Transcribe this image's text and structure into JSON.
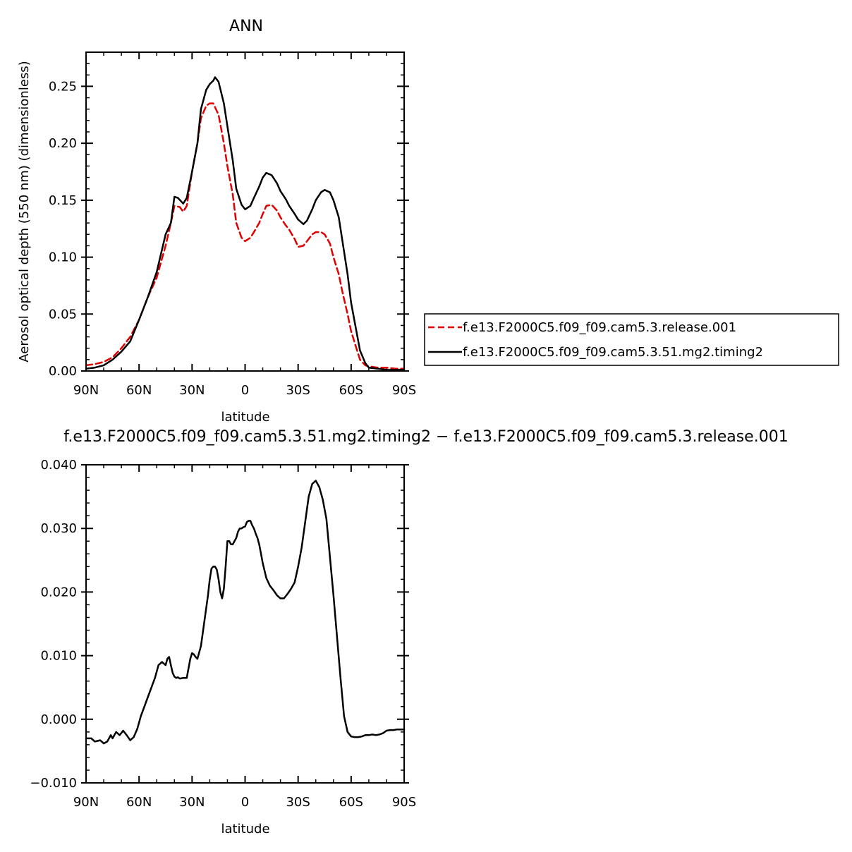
{
  "chart_data": [
    {
      "type": "line",
      "title": "ANN",
      "xlabel": "latitude",
      "ylabel": "Aerosol optical depth (550 nm) (dimensionless)",
      "xlim": [
        90,
        -90
      ],
      "ylim": [
        0,
        0.28
      ],
      "x_ticks": [
        {
          "value": 90,
          "label": "90N"
        },
        {
          "value": 60,
          "label": "60N"
        },
        {
          "value": 30,
          "label": "30N"
        },
        {
          "value": 0,
          "label": "0"
        },
        {
          "value": -30,
          "label": "30S"
        },
        {
          "value": -60,
          "label": "60S"
        },
        {
          "value": -90,
          "label": "90S"
        }
      ],
      "y_ticks": [
        {
          "value": 0,
          "label": "0.00"
        },
        {
          "value": 0.05,
          "label": "0.05"
        },
        {
          "value": 0.1,
          "label": "0.10"
        },
        {
          "value": 0.15,
          "label": "0.15"
        },
        {
          "value": 0.2,
          "label": "0.20"
        },
        {
          "value": 0.25,
          "label": "0.25"
        }
      ],
      "legend_position": "right",
      "series": [
        {
          "name": "f.e13.F2000C5.f09_f09.cam5.3.release.001",
          "color": "#e00000",
          "dash": "dashed",
          "x": [
            90,
            85,
            80,
            75,
            70,
            65,
            60,
            55,
            50,
            45,
            42,
            40,
            37,
            35,
            33,
            30,
            27,
            25,
            22,
            20,
            18,
            15,
            12,
            10,
            7,
            5,
            2,
            0,
            -3,
            -5,
            -8,
            -10,
            -12,
            -15,
            -18,
            -20,
            -23,
            -25,
            -28,
            -30,
            -33,
            -35,
            -38,
            -40,
            -43,
            -45,
            -48,
            -50,
            -53,
            -55,
            -58,
            -60,
            -63,
            -65,
            -68,
            -70,
            -75,
            -80,
            -85,
            -90
          ],
          "y": [
            0.005,
            0.006,
            0.008,
            0.012,
            0.02,
            0.03,
            0.045,
            0.065,
            0.082,
            0.11,
            0.13,
            0.145,
            0.144,
            0.14,
            0.145,
            0.175,
            0.2,
            0.222,
            0.233,
            0.235,
            0.235,
            0.225,
            0.2,
            0.18,
            0.155,
            0.13,
            0.117,
            0.114,
            0.117,
            0.122,
            0.13,
            0.138,
            0.145,
            0.146,
            0.141,
            0.135,
            0.128,
            0.124,
            0.116,
            0.109,
            0.11,
            0.114,
            0.12,
            0.122,
            0.122,
            0.12,
            0.112,
            0.1,
            0.085,
            0.07,
            0.05,
            0.035,
            0.02,
            0.01,
            0.005,
            0.004,
            0.003,
            0.003,
            0.002,
            0.002
          ]
        },
        {
          "name": "f.e13.F2000C5.f09_f09.cam5.3.51.mg2.timing2",
          "color": "#000000",
          "dash": "solid",
          "x": [
            90,
            85,
            80,
            75,
            70,
            65,
            60,
            55,
            50,
            45,
            42,
            40,
            38,
            35,
            33,
            30,
            27,
            25,
            22,
            20,
            18,
            17,
            15,
            12,
            10,
            7,
            5,
            2,
            0,
            -3,
            -5,
            -8,
            -10,
            -12,
            -15,
            -18,
            -20,
            -23,
            -25,
            -28,
            -30,
            -33,
            -35,
            -38,
            -40,
            -43,
            -45,
            -48,
            -50,
            -53,
            -55,
            -58,
            -60,
            -63,
            -65,
            -68,
            -70,
            -75,
            -80,
            -85,
            -90
          ],
          "y": [
            0.002,
            0.003,
            0.005,
            0.01,
            0.017,
            0.026,
            0.045,
            0.065,
            0.087,
            0.12,
            0.13,
            0.153,
            0.152,
            0.147,
            0.152,
            0.175,
            0.2,
            0.23,
            0.247,
            0.252,
            0.255,
            0.258,
            0.254,
            0.235,
            0.215,
            0.185,
            0.16,
            0.146,
            0.142,
            0.145,
            0.152,
            0.162,
            0.17,
            0.174,
            0.172,
            0.165,
            0.158,
            0.151,
            0.145,
            0.138,
            0.133,
            0.129,
            0.132,
            0.142,
            0.15,
            0.157,
            0.159,
            0.157,
            0.15,
            0.135,
            0.115,
            0.085,
            0.06,
            0.035,
            0.018,
            0.007,
            0.003,
            0.002,
            0.001,
            0.001,
            0.001
          ]
        }
      ]
    },
    {
      "type": "line",
      "title": "f.e13.F2000C5.f09_f09.cam5.3.51.mg2.timing2 − f.e13.F2000C5.f09_f09.cam5.3.release.001",
      "xlabel": "latitude",
      "ylabel": "",
      "xlim": [
        90,
        -90
      ],
      "ylim": [
        -0.01,
        0.04
      ],
      "x_ticks": [
        {
          "value": 90,
          "label": "90N"
        },
        {
          "value": 60,
          "label": "60N"
        },
        {
          "value": 30,
          "label": "30N"
        },
        {
          "value": 0,
          "label": "0"
        },
        {
          "value": -30,
          "label": "30S"
        },
        {
          "value": -60,
          "label": "60S"
        },
        {
          "value": -90,
          "label": "90S"
        }
      ],
      "y_ticks": [
        {
          "value": -0.01,
          "label": "−0.010"
        },
        {
          "value": 0,
          "label": "0.000"
        },
        {
          "value": 0.01,
          "label": "0.010"
        },
        {
          "value": 0.02,
          "label": "0.020"
        },
        {
          "value": 0.03,
          "label": "0.030"
        },
        {
          "value": 0.04,
          "label": "0.040"
        }
      ],
      "series": [
        {
          "color": "#000000",
          "dash": "solid",
          "x": [
            90,
            87,
            85,
            82,
            80,
            78,
            76,
            75,
            73,
            71,
            69,
            67,
            65,
            63,
            61,
            59,
            57,
            55,
            53,
            51,
            49,
            47,
            45,
            44,
            43,
            42,
            41,
            40,
            39,
            38,
            37,
            35,
            33,
            32,
            31,
            30,
            29,
            28,
            27,
            25,
            23,
            22,
            21,
            20,
            19,
            18,
            17,
            16,
            15,
            14,
            13,
            12,
            11,
            10,
            9,
            8,
            7,
            6,
            5,
            4,
            3,
            2,
            1,
            0,
            -1,
            -2,
            -3,
            -4,
            -5,
            -6,
            -7,
            -8,
            -9,
            -10,
            -12,
            -14,
            -16,
            -18,
            -20,
            -22,
            -24,
            -26,
            -28,
            -30,
            -32,
            -34,
            -36,
            -38,
            -40,
            -42,
            -44,
            -46,
            -48,
            -50,
            -52,
            -54,
            -56,
            -58,
            -60,
            -62,
            -64,
            -66,
            -68,
            -70,
            -72,
            -74,
            -76,
            -78,
            -80,
            -82,
            -84,
            -86,
            -88,
            -90
          ],
          "y": [
            -0.003,
            -0.003,
            -0.0035,
            -0.0033,
            -0.0038,
            -0.0035,
            -0.0025,
            -0.003,
            -0.002,
            -0.0025,
            -0.0018,
            -0.0025,
            -0.0033,
            -0.0028,
            -0.0015,
            0.0005,
            0.002,
            0.0035,
            0.005,
            0.0065,
            0.0085,
            0.009,
            0.0085,
            0.0095,
            0.0098,
            0.0085,
            0.0073,
            0.0067,
            0.0065,
            0.0066,
            0.0064,
            0.0065,
            0.0065,
            0.008,
            0.0095,
            0.0104,
            0.0102,
            0.0098,
            0.0095,
            0.0115,
            0.0155,
            0.0175,
            0.0195,
            0.022,
            0.0237,
            0.024,
            0.024,
            0.0235,
            0.022,
            0.02,
            0.019,
            0.0205,
            0.024,
            0.028,
            0.028,
            0.0275,
            0.0275,
            0.028,
            0.0285,
            0.0295,
            0.03,
            0.03,
            0.0302,
            0.0303,
            0.031,
            0.0312,
            0.0312,
            0.0305,
            0.03,
            0.0292,
            0.0285,
            0.0275,
            0.026,
            0.0245,
            0.0222,
            0.021,
            0.0203,
            0.0195,
            0.019,
            0.019,
            0.0197,
            0.0205,
            0.0215,
            0.024,
            0.027,
            0.031,
            0.035,
            0.037,
            0.0375,
            0.0365,
            0.0345,
            0.0315,
            0.0255,
            0.0195,
            0.013,
            0.0065,
            0.0005,
            -0.002,
            -0.0027,
            -0.0028,
            -0.0028,
            -0.0027,
            -0.0025,
            -0.0025,
            -0.0024,
            -0.0025,
            -0.0024,
            -0.0022,
            -0.0018,
            -0.0017,
            -0.0017,
            -0.0016,
            -0.0016,
            -0.0016
          ]
        }
      ]
    }
  ]
}
